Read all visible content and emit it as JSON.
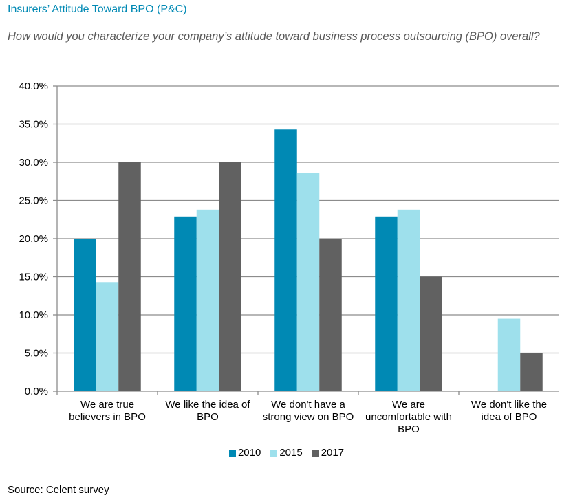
{
  "title": "Insurers’ Attitude Toward BPO (P&C)",
  "subtitle": "How would you characterize your company’s attitude toward business process outsourcing (BPO) overall?",
  "source": "Source: Celent survey",
  "chart_data": {
    "type": "bar",
    "title": "Insurers’ Attitude Toward BPO (P&C)",
    "xlabel": "",
    "ylabel": "",
    "ylim": [
      0,
      40
    ],
    "y_ticks": [
      0,
      5,
      10,
      15,
      20,
      25,
      30,
      35,
      40
    ],
    "y_tick_labels": [
      "0.0%",
      "5.0%",
      "10.0%",
      "15.0%",
      "20.0%",
      "25.0%",
      "30.0%",
      "35.0%",
      "40.0%"
    ],
    "grid": true,
    "legend_position": "bottom",
    "categories": [
      [
        "We are true",
        "believers in BPO"
      ],
      [
        "We like the idea of",
        "BPO"
      ],
      [
        "We don't have a",
        "strong view on BPO"
      ],
      [
        "We are",
        "uncomfortable with",
        "BPO"
      ],
      [
        "We don't like the",
        "idea of BPO"
      ]
    ],
    "series": [
      {
        "name": "2010",
        "color": "#0089b4",
        "values": [
          20.0,
          22.9,
          34.3,
          22.9,
          0.0
        ]
      },
      {
        "name": "2015",
        "color": "#9ee0ec",
        "values": [
          14.3,
          23.8,
          28.6,
          23.8,
          9.5
        ]
      },
      {
        "name": "2017",
        "color": "#616161",
        "values": [
          30.0,
          30.0,
          20.0,
          15.0,
          5.0
        ]
      }
    ]
  }
}
